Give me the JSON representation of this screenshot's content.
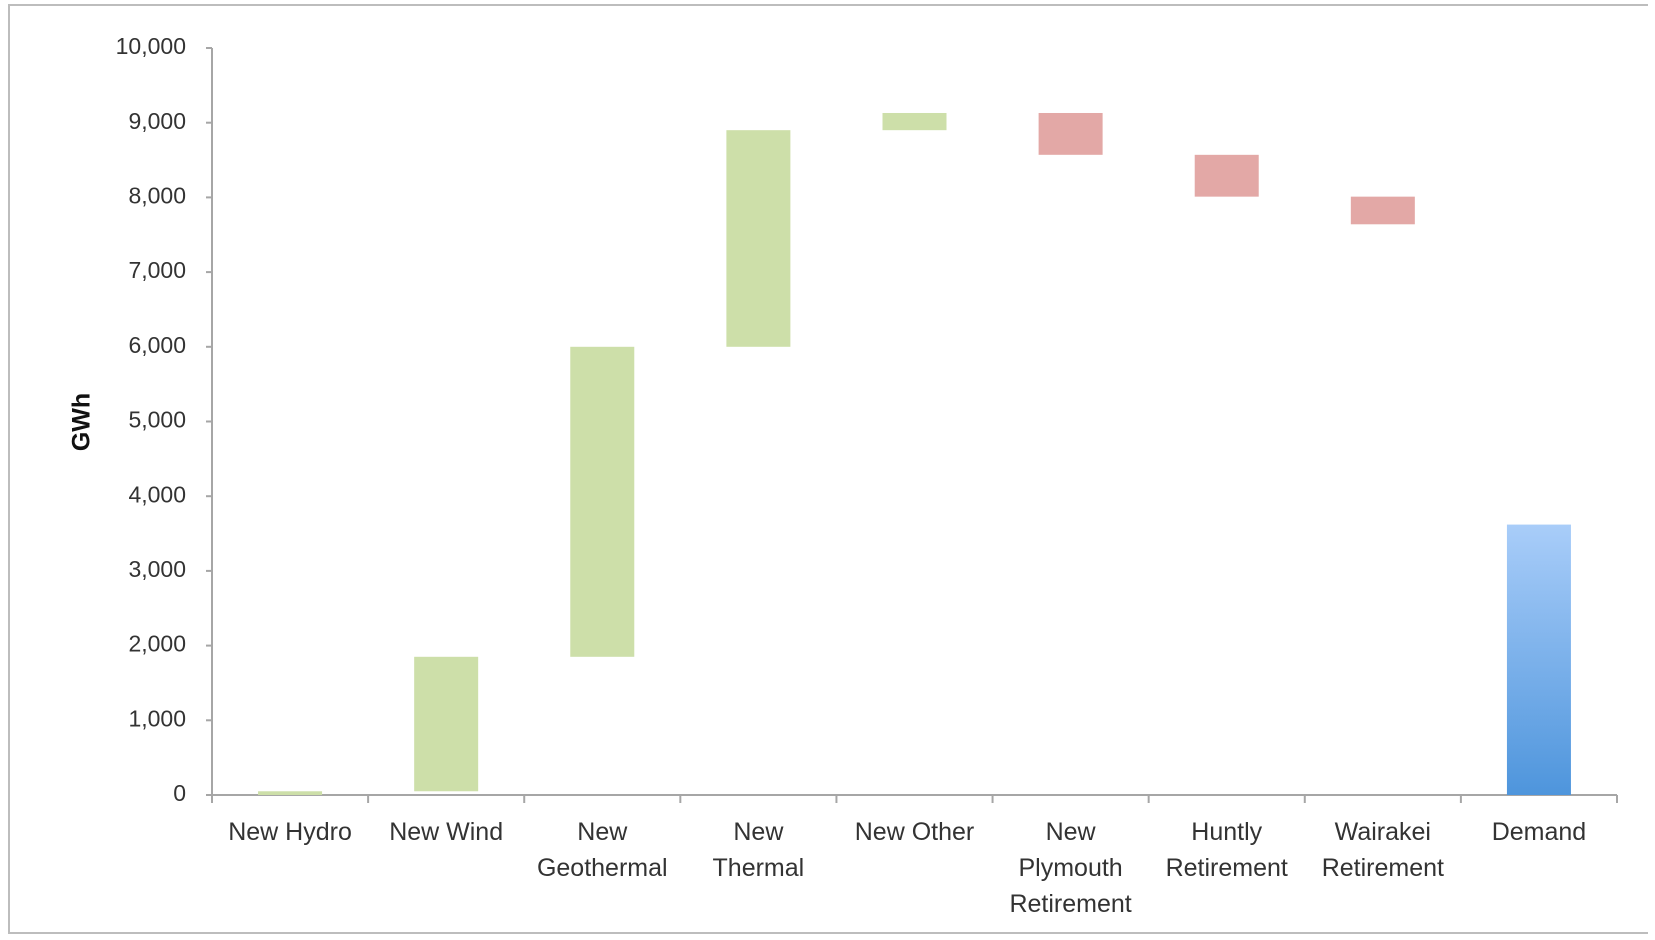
{
  "chart_data": {
    "type": "bar",
    "subtype": "waterfall",
    "title": "",
    "xlabel": "",
    "ylabel": "GWh",
    "ylim": [
      0,
      10000
    ],
    "yticks": [
      0,
      1000,
      2000,
      3000,
      4000,
      5000,
      6000,
      7000,
      8000,
      9000,
      10000
    ],
    "ytick_labels": [
      "0",
      "1,000",
      "2,000",
      "3,000",
      "4,000",
      "5,000",
      "6,000",
      "7,000",
      "8,000",
      "9,000",
      "10,000"
    ],
    "grid": false,
    "legend": "none",
    "categories": [
      [
        "New Hydro"
      ],
      [
        "New Wind"
      ],
      [
        "New",
        "Geothermal"
      ],
      [
        "New",
        "Thermal"
      ],
      [
        "New Other"
      ],
      [
        "New",
        "Plymouth",
        "Retirement"
      ],
      [
        "Huntly",
        "Retirement"
      ],
      [
        "Wairakei",
        "Retirement"
      ],
      [
        "Demand"
      ]
    ],
    "bars": [
      {
        "start": 0,
        "end": 50,
        "kind": "increase"
      },
      {
        "start": 50,
        "end": 1850,
        "kind": "increase"
      },
      {
        "start": 1850,
        "end": 6000,
        "kind": "increase"
      },
      {
        "start": 6000,
        "end": 8900,
        "kind": "increase"
      },
      {
        "start": 8900,
        "end": 9130,
        "kind": "increase"
      },
      {
        "start": 9130,
        "end": 8570,
        "kind": "decrease"
      },
      {
        "start": 8570,
        "end": 8010,
        "kind": "decrease"
      },
      {
        "start": 8010,
        "end": 7640,
        "kind": "decrease"
      },
      {
        "start": 0,
        "end": 3620,
        "kind": "total"
      }
    ],
    "colors": {
      "increase": "#cddfa9",
      "decrease": "#e3a8a6",
      "total_top": "#a9cdf9",
      "total_bottom": "#4e95dc",
      "axis": "#a6a6a6"
    }
  }
}
